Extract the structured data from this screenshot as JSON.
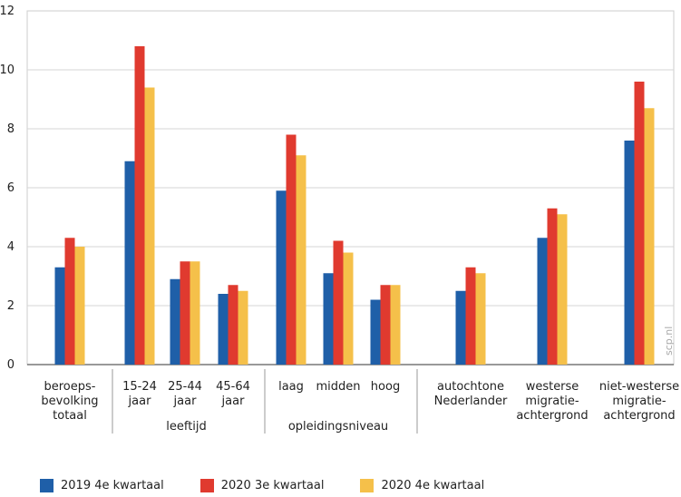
{
  "chart_data": {
    "type": "bar",
    "ylim": [
      0,
      12
    ],
    "yticks": [
      "0",
      "2",
      "4",
      "6",
      "8",
      "10",
      "12"
    ],
    "grid": true,
    "legend_position": "bottom",
    "watermark": "scp.nl",
    "categories": [
      [
        "beroeps-",
        "bevolking",
        "totaal"
      ],
      [
        "15-24",
        "jaar"
      ],
      [
        "25-44",
        "jaar"
      ],
      [
        "45-64",
        "jaar"
      ],
      [
        "laag"
      ],
      [
        "midden"
      ],
      [
        "hoog"
      ],
      [
        "autochtone",
        "Nederlander"
      ],
      [
        "westerse",
        "migratie-",
        "achtergrond"
      ],
      [
        "niet-westerse",
        "migratie-",
        "achtergrond"
      ]
    ],
    "groups": [
      {
        "label": "leeftijd",
        "from": 1,
        "to": 3
      },
      {
        "label": "opleidingsniveau",
        "from": 4,
        "to": 6
      }
    ],
    "series": [
      {
        "name": "2019 4e kwartaal",
        "color": "#1f5fa8",
        "values": [
          3.3,
          6.9,
          2.9,
          2.4,
          5.9,
          3.1,
          2.2,
          2.5,
          4.3,
          7.6
        ]
      },
      {
        "name": "2020 3e kwartaal",
        "color": "#e03a2f",
        "values": [
          4.3,
          10.8,
          3.5,
          2.7,
          7.8,
          4.2,
          2.7,
          3.3,
          5.3,
          9.6
        ]
      },
      {
        "name": "2020 4e kwartaal",
        "color": "#f5c04a",
        "values": [
          4.0,
          9.4,
          3.5,
          2.5,
          7.1,
          3.8,
          2.7,
          3.1,
          5.1,
          8.7
        ]
      }
    ]
  }
}
